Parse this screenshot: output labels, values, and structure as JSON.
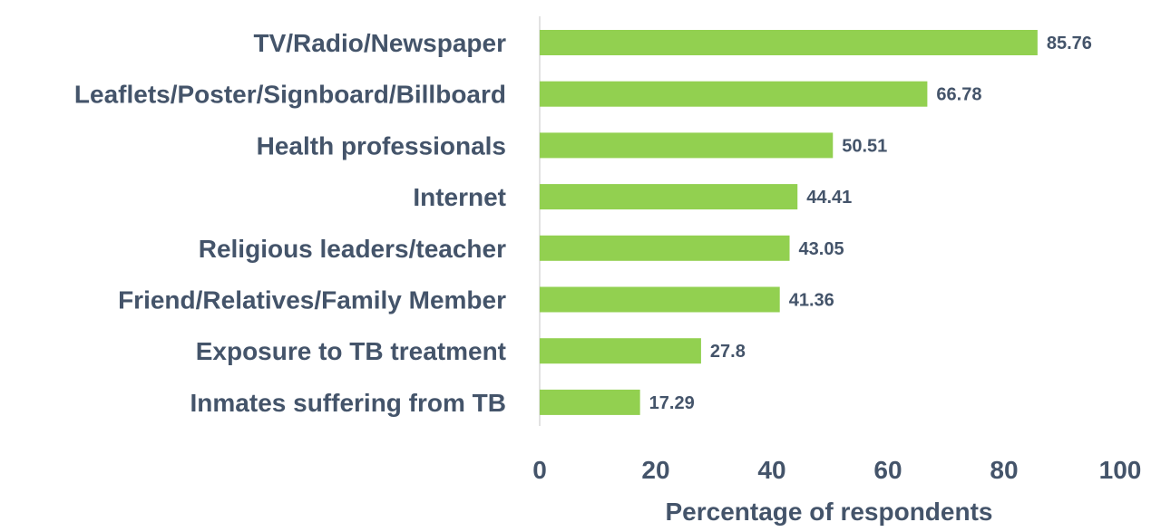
{
  "chart_data": {
    "type": "bar",
    "orientation": "horizontal",
    "categories": [
      "TV/Radio/Newspaper",
      "Leaflets/Poster/Signboard/Billboard",
      "Health professionals",
      "Internet",
      "Religious leaders/teacher",
      "Friend/Relatives/Family Member",
      "Exposure to TB treatment",
      "Inmates suffering from TB"
    ],
    "values": [
      85.76,
      66.78,
      50.51,
      44.41,
      43.05,
      41.36,
      27.8,
      17.29
    ],
    "value_labels": [
      "85.76",
      "66.78",
      "50.51",
      "44.41",
      "43.05",
      "41.36",
      "27.8",
      "17.29"
    ],
    "xlabel": "Percentage of respondents",
    "xlim": [
      0,
      100
    ],
    "xticks": [
      "0",
      "20",
      "40",
      "60",
      "80",
      "100"
    ],
    "grid": false,
    "bar_color": "#92d050",
    "text_color": "#44546a"
  }
}
